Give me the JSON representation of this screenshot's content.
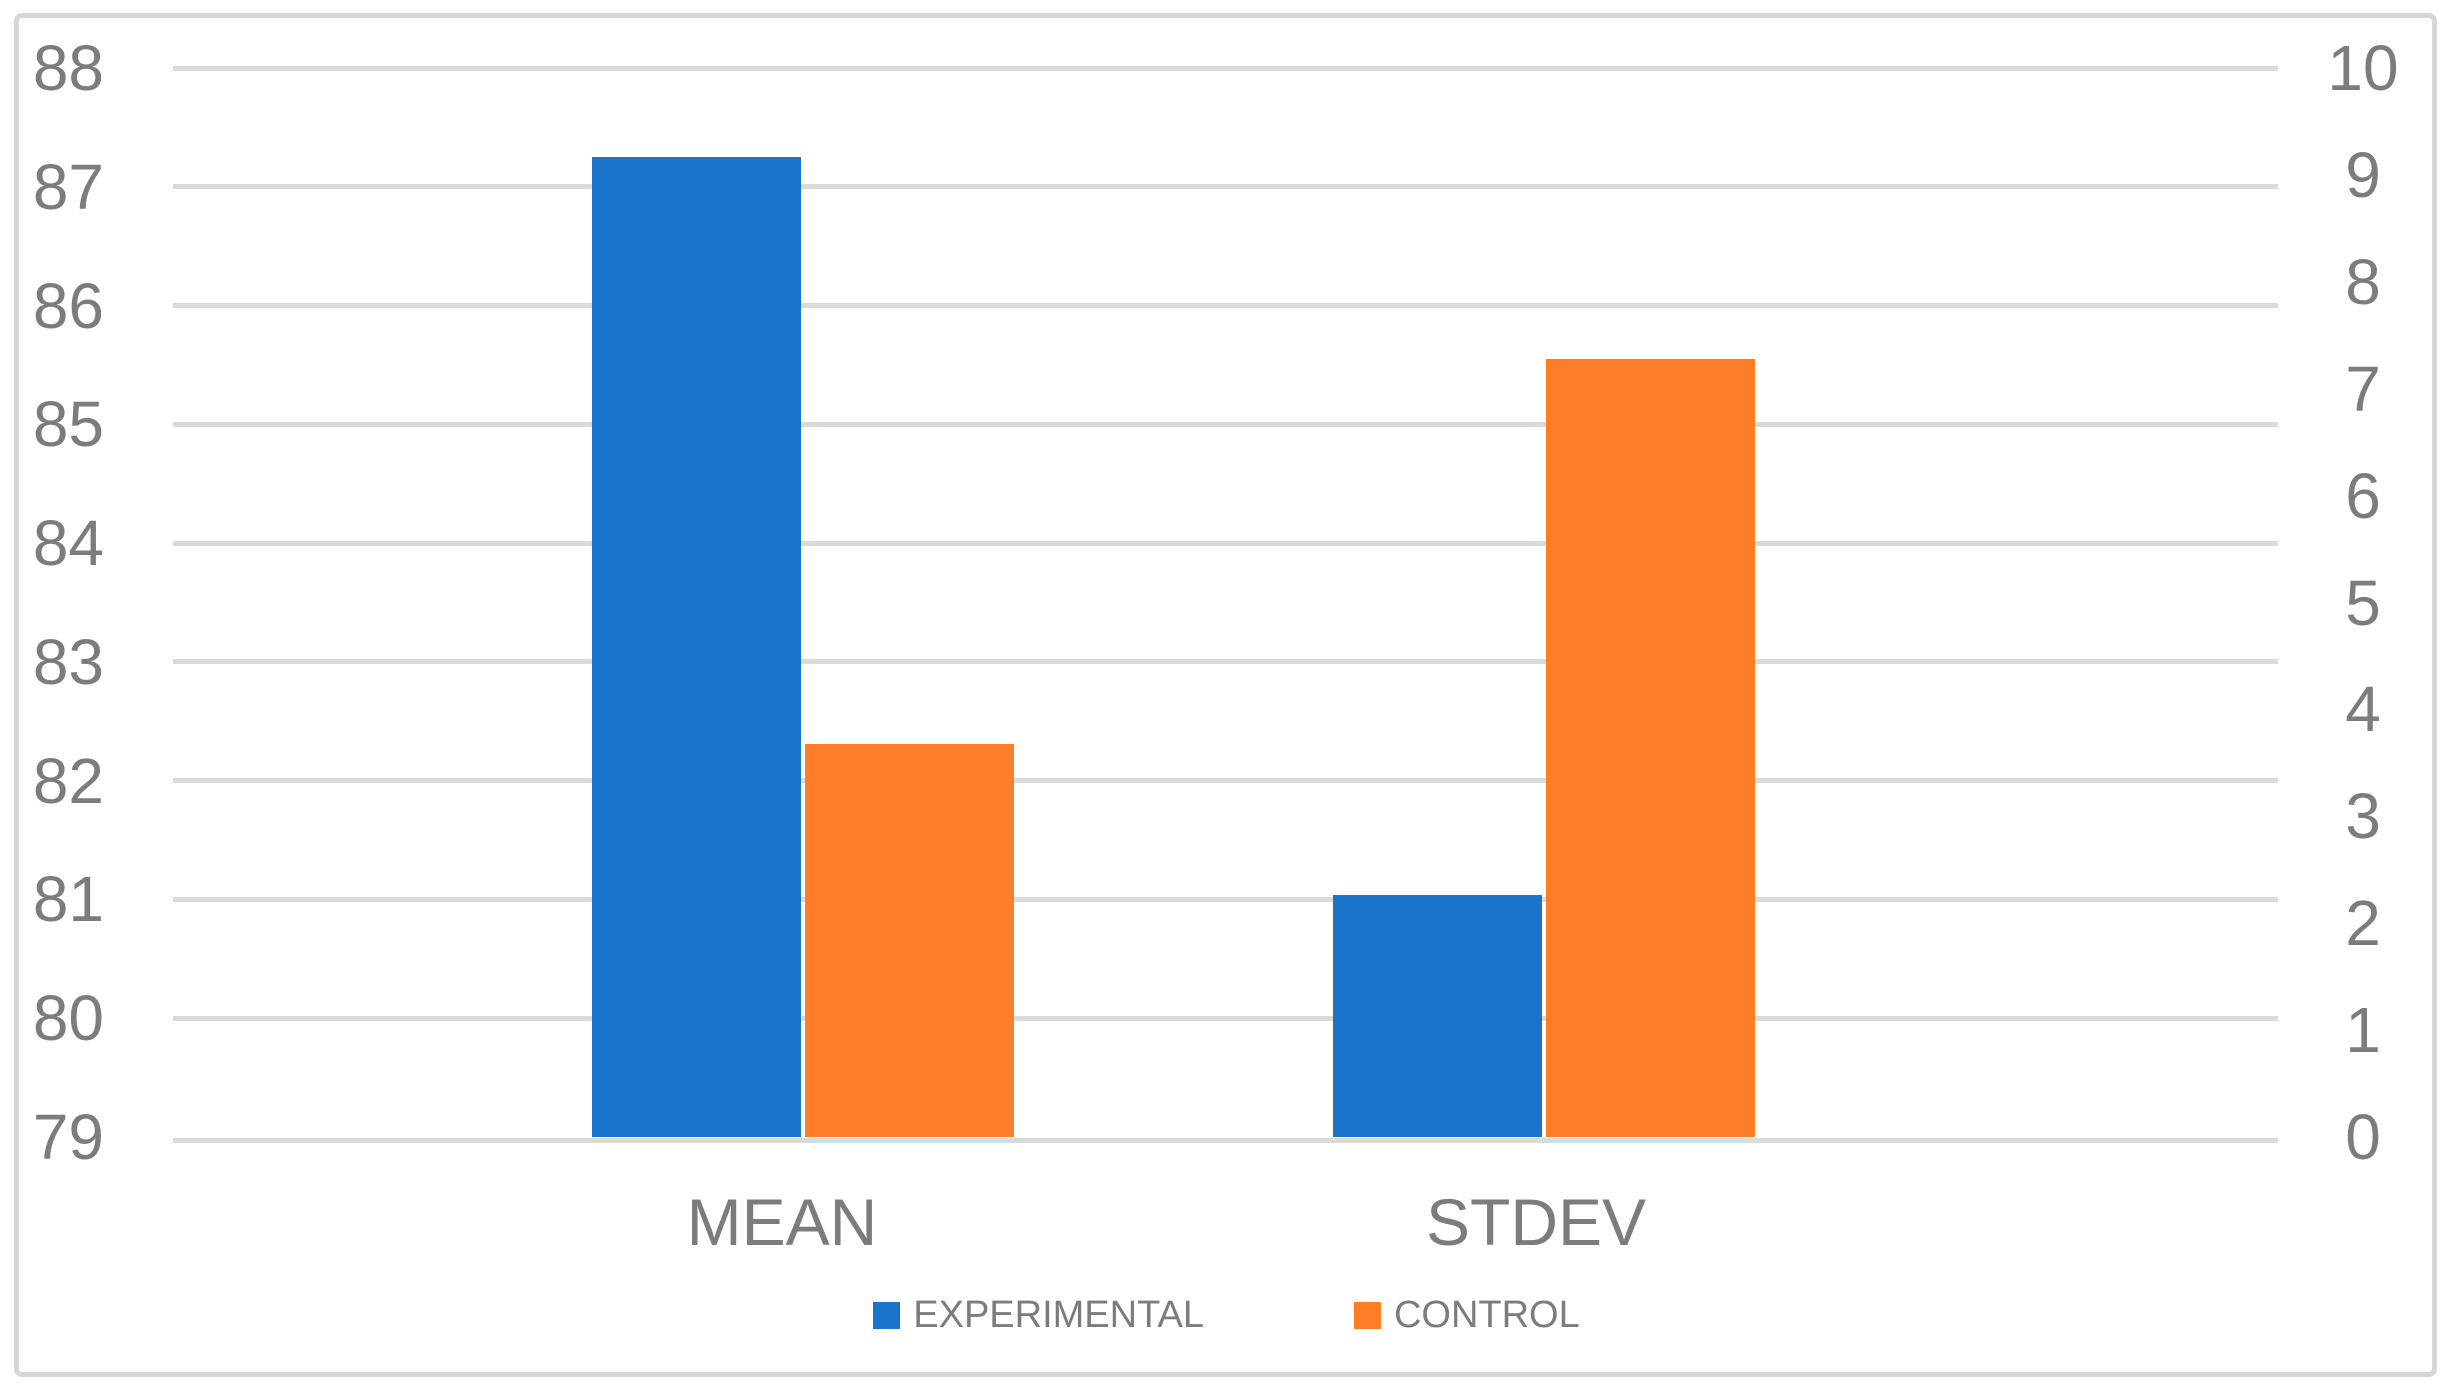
{
  "chart_data": {
    "type": "bar",
    "title": "",
    "categories": [
      "MEAN",
      "STDEV"
    ],
    "category_axis_mapping": [
      "left",
      "right"
    ],
    "series": [
      {
        "name": "EXPERIMENTAL",
        "color": "#1A74CA",
        "values": [
          87.25,
          2.26
        ]
      },
      {
        "name": "CONTROL",
        "color": "#FD7E26",
        "values": [
          82.31,
          7.28
        ]
      }
    ],
    "left_axis": {
      "min": 79,
      "max": 88,
      "step": 1,
      "tick_labels": [
        "88",
        "87",
        "86",
        "85",
        "84",
        "83",
        "82",
        "81",
        "80",
        "79"
      ]
    },
    "right_axis": {
      "min": 0,
      "max": 10,
      "step": 1,
      "tick_labels": [
        "10",
        "9",
        "8",
        "7",
        "6",
        "5",
        "4",
        "3",
        "2",
        "1",
        "0"
      ]
    },
    "legend": {
      "position": "bottom",
      "entries": [
        "EXPERIMENTAL",
        "CONTROL"
      ]
    },
    "grid": true,
    "colors": {
      "gridline": "#DADADA",
      "axis_text": "#7C7C7C",
      "frame_border": "#D6D6D6",
      "background": "#FFFFFF"
    }
  }
}
